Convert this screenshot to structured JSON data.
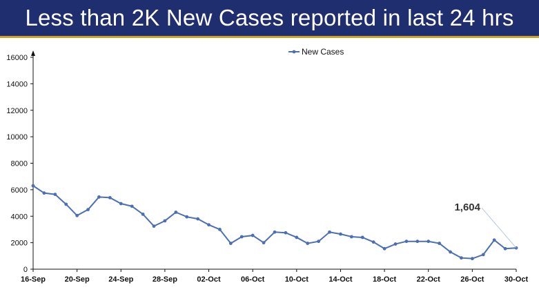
{
  "header": {
    "title": "Less than 2K New Cases reported in last 24 hrs",
    "background": "#1f2e6e",
    "accent": "#c9a227"
  },
  "chart_data": {
    "type": "line",
    "title": "Less than 2K New Cases reported in last 24 hrs",
    "xlabel": "",
    "ylabel": "",
    "ylim": [
      0,
      16000
    ],
    "yticks": [
      0,
      2000,
      4000,
      6000,
      8000,
      10000,
      12000,
      14000,
      16000
    ],
    "x": [
      "16-Sep",
      "17-Sep",
      "18-Sep",
      "19-Sep",
      "20-Sep",
      "21-Sep",
      "22-Sep",
      "23-Sep",
      "24-Sep",
      "25-Sep",
      "26-Sep",
      "27-Sep",
      "28-Sep",
      "29-Sep",
      "30-Sep",
      "01-Oct",
      "02-Oct",
      "03-Oct",
      "04-Oct",
      "05-Oct",
      "06-Oct",
      "07-Oct",
      "08-Oct",
      "09-Oct",
      "10-Oct",
      "11-Oct",
      "12-Oct",
      "13-Oct",
      "14-Oct",
      "15-Oct",
      "16-Oct",
      "17-Oct",
      "18-Oct",
      "19-Oct",
      "20-Oct",
      "21-Oct",
      "22-Oct",
      "23-Oct",
      "24-Oct",
      "25-Oct",
      "26-Oct",
      "27-Oct",
      "28-Oct",
      "29-Oct",
      "30-Oct"
    ],
    "xtick_labels": [
      "16-Sep",
      "20-Sep",
      "24-Sep",
      "28-Sep",
      "02-Oct",
      "06-Oct",
      "10-Oct",
      "14-Oct",
      "18-Oct",
      "22-Oct",
      "26-Oct",
      "30-Oct"
    ],
    "series": [
      {
        "name": "New Cases",
        "color": "#4a6fb5",
        "values": [
          6300,
          5750,
          5650,
          4900,
          4050,
          4500,
          5450,
          5400,
          4950,
          4750,
          4150,
          3250,
          3650,
          4300,
          3950,
          3800,
          3350,
          3000,
          1950,
          2450,
          2550,
          2000,
          2800,
          2750,
          2400,
          1950,
          2100,
          2800,
          2650,
          2450,
          2400,
          2050,
          1550,
          1900,
          2100,
          2100,
          2100,
          1950,
          1300,
          850,
          800,
          1100,
          2200,
          1550,
          1604
        ]
      }
    ],
    "annotation": {
      "label": "1,604",
      "point": "30-Oct",
      "value": 1604
    },
    "legend": "top-center",
    "grid": false
  }
}
